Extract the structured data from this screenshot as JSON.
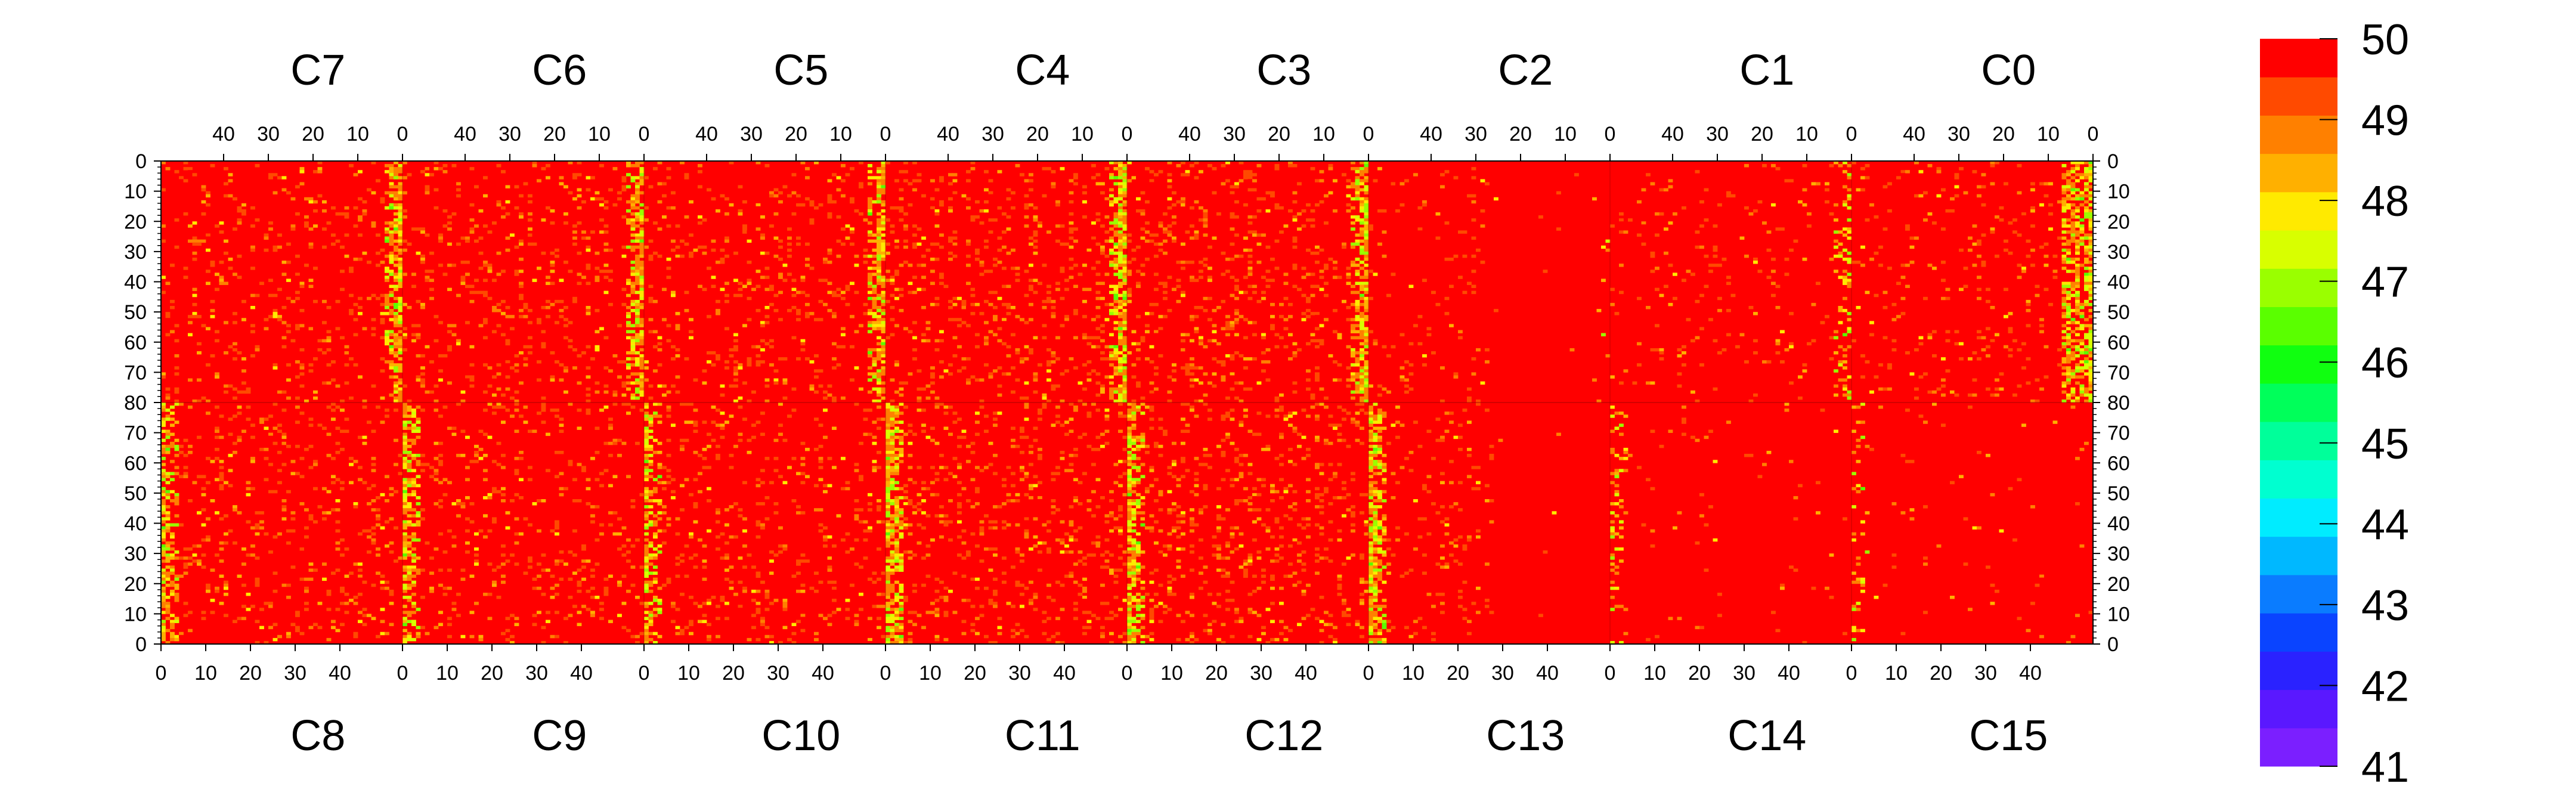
{
  "chart_data": {
    "type": "heatmap",
    "title": "",
    "color_scale": {
      "min": 41,
      "max": 50,
      "ticks": [
        41,
        42,
        43,
        44,
        45,
        46,
        47,
        48,
        49,
        50
      ],
      "bands": [
        "#7b1fff",
        "#5a18ff",
        "#2a22ff",
        "#0a44ff",
        "#0a7cff",
        "#00b8ff",
        "#00ecff",
        "#00ffd0",
        "#00ff9a",
        "#00ff5a",
        "#10ff10",
        "#5aff00",
        "#9aff00",
        "#d8ff00",
        "#ffea00",
        "#ffb000",
        "#ff8000",
        "#ff4a00",
        "#ff0000"
      ]
    },
    "top_labels": [
      "C7",
      "C6",
      "C5",
      "C4",
      "C3",
      "C2",
      "C1",
      "C0"
    ],
    "bottom_labels": [
      "C8",
      "C9",
      "C10",
      "C11",
      "C12",
      "C13",
      "C14",
      "C15"
    ],
    "column_ticks_top": [
      "40",
      "30",
      "20",
      "10",
      "0"
    ],
    "column_ticks_bottom": [
      "0",
      "10",
      "20",
      "30",
      "40"
    ],
    "row_ticks": [
      "0",
      "10",
      "20",
      "30",
      "40",
      "50",
      "60",
      "70",
      "80",
      "70",
      "60",
      "50",
      "40",
      "30",
      "20",
      "10",
      "0"
    ],
    "grid": {
      "blocks": 8,
      "columns_per_block": 54,
      "rows_per_half": 80,
      "halves": [
        "top",
        "bottom"
      ]
    },
    "value_notes": "Nearly all cells at 49–50 (red); scattered cells at 47–49 (orange/yellow); a denser band of 46–49 values at the column-0 edge of each block; chips C13/C14 (bottom) and C2/C1 (top, right side) almost uniformly 50."
  }
}
